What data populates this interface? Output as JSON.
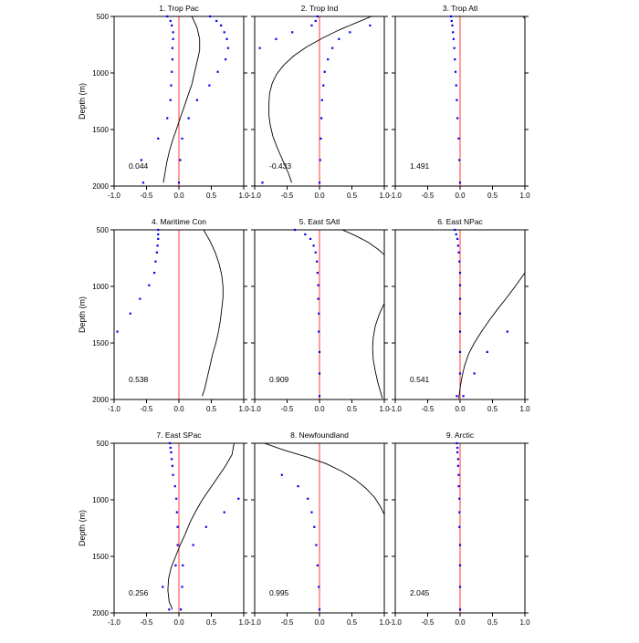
{
  "figure": {
    "colors": {
      "zero_line": "#ff3b3b",
      "points": "#0000ee",
      "curve": "#000000",
      "frame": "#000000"
    }
  },
  "chart_data": [
    {
      "type": "line",
      "title": "1. Trop Pac",
      "ylabel": "Depth (m)",
      "xlim": [
        -1,
        1
      ],
      "ylim": [
        2000,
        500
      ],
      "x_ticks": [
        "-1.0",
        "-0.5",
        "0.0",
        "0.5",
        "1.0"
      ],
      "y_ticks": [
        "500",
        "1000",
        "1500",
        "2000"
      ],
      "annotation": "0.044",
      "points_a": [
        [
          -0.18,
          500
        ],
        [
          -0.13,
          540
        ],
        [
          -0.11,
          580
        ],
        [
          -0.09,
          640
        ],
        [
          -0.09,
          700
        ],
        [
          -0.1,
          780
        ],
        [
          -0.1,
          880
        ],
        [
          -0.11,
          990
        ],
        [
          -0.12,
          1110
        ],
        [
          -0.13,
          1240
        ],
        [
          -0.18,
          1400
        ],
        [
          -0.32,
          1580
        ],
        [
          -0.58,
          1770
        ],
        [
          -0.55,
          1970
        ]
      ],
      "points_b": [
        [
          0.48,
          500
        ],
        [
          0.58,
          540
        ],
        [
          0.65,
          580
        ],
        [
          0.7,
          640
        ],
        [
          0.74,
          700
        ],
        [
          0.76,
          780
        ],
        [
          0.72,
          880
        ],
        [
          0.6,
          990
        ],
        [
          0.47,
          1110
        ],
        [
          0.28,
          1240
        ],
        [
          0.15,
          1400
        ],
        [
          0.05,
          1580
        ],
        [
          0.02,
          1770
        ],
        [
          0.0,
          1970
        ]
      ],
      "curve": [
        [
          0.2,
          500
        ],
        [
          0.28,
          600
        ],
        [
          0.32,
          700
        ],
        [
          0.32,
          800
        ],
        [
          0.28,
          900
        ],
        [
          0.24,
          1000
        ],
        [
          0.2,
          1100
        ],
        [
          0.14,
          1200
        ],
        [
          0.08,
          1300
        ],
        [
          0.02,
          1400
        ],
        [
          -0.04,
          1500
        ],
        [
          -0.1,
          1600
        ],
        [
          -0.15,
          1700
        ],
        [
          -0.19,
          1800
        ],
        [
          -0.22,
          1900
        ],
        [
          -0.24,
          1970
        ]
      ]
    },
    {
      "type": "line",
      "title": "2. Trop Ind",
      "xlim": [
        -1,
        1
      ],
      "ylim": [
        2000,
        500
      ],
      "x_ticks": [
        "-1.0",
        "-0.5",
        "0.0",
        "0.5",
        "1.0"
      ],
      "y_ticks": [
        "500",
        "1000",
        "1500",
        "2000"
      ],
      "annotation": "-0.433",
      "points_a": [
        [
          -0.03,
          500
        ],
        [
          -0.06,
          540
        ],
        [
          -0.12,
          580
        ],
        [
          -0.42,
          640
        ],
        [
          -0.67,
          700
        ],
        [
          -0.92,
          780
        ],
        [
          -0.88,
          1970
        ]
      ],
      "points_b": [
        [
          0.78,
          580
        ],
        [
          0.47,
          640
        ],
        [
          0.3,
          700
        ],
        [
          0.2,
          780
        ],
        [
          0.13,
          880
        ],
        [
          0.08,
          990
        ],
        [
          0.06,
          1110
        ],
        [
          0.04,
          1240
        ],
        [
          0.03,
          1400
        ],
        [
          0.02,
          1580
        ],
        [
          0.01,
          1770
        ],
        [
          0.0,
          1970
        ]
      ],
      "curve": [
        [
          0.8,
          500
        ],
        [
          0.55,
          560
        ],
        [
          0.3,
          620
        ],
        [
          0.05,
          690
        ],
        [
          -0.2,
          770
        ],
        [
          -0.4,
          850
        ],
        [
          -0.55,
          930
        ],
        [
          -0.66,
          1010
        ],
        [
          -0.73,
          1090
        ],
        [
          -0.77,
          1180
        ],
        [
          -0.78,
          1270
        ],
        [
          -0.78,
          1370
        ],
        [
          -0.76,
          1460
        ],
        [
          -0.72,
          1560
        ],
        [
          -0.66,
          1650
        ],
        [
          -0.6,
          1730
        ],
        [
          -0.53,
          1820
        ],
        [
          -0.47,
          1900
        ],
        [
          -0.43,
          1970
        ]
      ]
    },
    {
      "type": "line",
      "title": "3. Trop Atl",
      "xlim": [
        -1,
        1
      ],
      "ylim": [
        2000,
        500
      ],
      "x_ticks": [
        "-1.0",
        "-0.5",
        "0.0",
        "0.5",
        "1.0"
      ],
      "y_ticks": [
        "500",
        "1000",
        "1500",
        "2000"
      ],
      "annotation": "1.491",
      "points_a": [
        [
          -0.14,
          500
        ],
        [
          -0.13,
          540
        ],
        [
          -0.12,
          580
        ],
        [
          -0.11,
          640
        ],
        [
          -0.1,
          700
        ],
        [
          -0.09,
          780
        ],
        [
          -0.08,
          880
        ],
        [
          -0.07,
          990
        ],
        [
          -0.06,
          1110
        ],
        [
          -0.05,
          1240
        ],
        [
          -0.04,
          1400
        ],
        [
          -0.02,
          1580
        ],
        [
          -0.01,
          1770
        ],
        [
          0.0,
          1970
        ]
      ],
      "points_b": [],
      "curve": [
        [
          0.97,
          500
        ],
        [
          1.0,
          520
        ]
      ]
    },
    {
      "type": "line",
      "title": "4. Maritime Con",
      "ylabel": "Depth (m)",
      "xlim": [
        -1,
        1
      ],
      "ylim": [
        2000,
        500
      ],
      "x_ticks": [
        "-1.0",
        "-0.5",
        "0.0",
        "0.5",
        "1.0"
      ],
      "y_ticks": [
        "500",
        "1000",
        "1500",
        "2000"
      ],
      "annotation": "0.538",
      "points_a": [
        [
          -0.32,
          500
        ],
        [
          -0.32,
          540
        ],
        [
          -0.32,
          580
        ],
        [
          -0.33,
          640
        ],
        [
          -0.34,
          700
        ],
        [
          -0.36,
          780
        ],
        [
          -0.38,
          880
        ],
        [
          -0.46,
          990
        ],
        [
          -0.6,
          1110
        ],
        [
          -0.75,
          1240
        ],
        [
          -0.95,
          1400
        ]
      ],
      "points_b": [],
      "curve": [
        [
          0.38,
          500
        ],
        [
          0.48,
          600
        ],
        [
          0.56,
          700
        ],
        [
          0.62,
          800
        ],
        [
          0.66,
          900
        ],
        [
          0.68,
          1000
        ],
        [
          0.68,
          1100
        ],
        [
          0.66,
          1200
        ],
        [
          0.64,
          1300
        ],
        [
          0.61,
          1400
        ],
        [
          0.57,
          1500
        ],
        [
          0.52,
          1600
        ],
        [
          0.48,
          1700
        ],
        [
          0.44,
          1800
        ],
        [
          0.4,
          1900
        ],
        [
          0.36,
          1970
        ]
      ]
    },
    {
      "type": "line",
      "title": "5. East SAtl",
      "xlim": [
        -1,
        1
      ],
      "ylim": [
        2000,
        500
      ],
      "x_ticks": [
        "-1.0",
        "-0.5",
        "0.0",
        "0.5",
        "1.0"
      ],
      "y_ticks": [
        "500",
        "1000",
        "1500",
        "2000"
      ],
      "annotation": "0.909",
      "points_a": [
        [
          -0.38,
          500
        ],
        [
          -0.22,
          540
        ],
        [
          -0.14,
          580
        ],
        [
          -0.09,
          640
        ],
        [
          -0.06,
          700
        ],
        [
          -0.04,
          780
        ],
        [
          -0.03,
          880
        ],
        [
          -0.02,
          990
        ],
        [
          -0.02,
          1110
        ],
        [
          -0.01,
          1240
        ],
        [
          -0.01,
          1400
        ],
        [
          0.0,
          1580
        ],
        [
          0.0,
          1770
        ],
        [
          0.0,
          1970
        ]
      ],
      "points_b": [],
      "curve_segments": [
        [
          [
            0.35,
            500
          ],
          [
            0.55,
            550
          ],
          [
            0.75,
            610
          ],
          [
            0.9,
            670
          ],
          [
            1.0,
            720
          ]
        ],
        [
          [
            1.0,
            1150
          ],
          [
            0.92,
            1250
          ],
          [
            0.86,
            1350
          ],
          [
            0.83,
            1450
          ],
          [
            0.82,
            1550
          ],
          [
            0.83,
            1650
          ],
          [
            0.86,
            1750
          ],
          [
            0.9,
            1850
          ],
          [
            0.95,
            1950
          ],
          [
            0.97,
            1990
          ]
        ]
      ]
    },
    {
      "type": "line",
      "title": "6. East NPac",
      "xlim": [
        -1,
        1
      ],
      "ylim": [
        2000,
        500
      ],
      "x_ticks": [
        "-1.0",
        "-0.5",
        "0.0",
        "0.5",
        "1.0"
      ],
      "y_ticks": [
        "500",
        "1000",
        "1500",
        "2000"
      ],
      "annotation": "0.541",
      "points_a": [
        [
          -0.08,
          500
        ],
        [
          -0.06,
          540
        ],
        [
          -0.04,
          580
        ],
        [
          -0.03,
          640
        ],
        [
          -0.02,
          700
        ],
        [
          -0.01,
          780
        ],
        [
          0.0,
          880
        ],
        [
          0.0,
          990
        ],
        [
          0.0,
          1110
        ],
        [
          0.0,
          1240
        ],
        [
          0.0,
          1400
        ],
        [
          0.0,
          1580
        ],
        [
          0.0,
          1770
        ],
        [
          0.05,
          1970
        ],
        [
          -0.05,
          1970
        ]
      ],
      "points_b": [
        [
          0.73,
          1400
        ],
        [
          0.42,
          1580
        ],
        [
          0.22,
          1770
        ]
      ],
      "curve": [
        [
          1.0,
          880
        ],
        [
          0.85,
          1000
        ],
        [
          0.72,
          1100
        ],
        [
          0.58,
          1200
        ],
        [
          0.45,
          1300
        ],
        [
          0.33,
          1400
        ],
        [
          0.22,
          1500
        ],
        [
          0.13,
          1600
        ],
        [
          0.07,
          1700
        ],
        [
          0.03,
          1800
        ],
        [
          0.0,
          1900
        ],
        [
          -0.02,
          1990
        ]
      ]
    },
    {
      "type": "line",
      "title": "7. East SPac",
      "ylabel": "Depth (m)",
      "xlim": [
        -1,
        1
      ],
      "ylim": [
        2000,
        500
      ],
      "x_ticks": [
        "-1.0",
        "-0.5",
        "0.0",
        "0.5",
        "1.0"
      ],
      "y_ticks": [
        "500",
        "1000",
        "1500",
        "2000"
      ],
      "annotation": "0.256",
      "points_a": [
        [
          -0.14,
          500
        ],
        [
          -0.13,
          540
        ],
        [
          -0.12,
          580
        ],
        [
          -0.11,
          640
        ],
        [
          -0.1,
          700
        ],
        [
          -0.09,
          780
        ],
        [
          -0.06,
          880
        ],
        [
          -0.04,
          990
        ],
        [
          -0.03,
          1110
        ],
        [
          -0.02,
          1240
        ],
        [
          -0.02,
          1400
        ],
        [
          -0.05,
          1580
        ],
        [
          -0.25,
          1770
        ],
        [
          -0.15,
          1970
        ]
      ],
      "points_b": [
        [
          0.92,
          990
        ],
        [
          0.7,
          1110
        ],
        [
          0.42,
          1240
        ],
        [
          0.22,
          1400
        ],
        [
          0.06,
          1580
        ],
        [
          0.05,
          1770
        ],
        [
          0.03,
          1970
        ]
      ],
      "curve": [
        [
          0.85,
          500
        ],
        [
          0.82,
          600
        ],
        [
          0.72,
          700
        ],
        [
          0.6,
          800
        ],
        [
          0.48,
          900
        ],
        [
          0.36,
          1000
        ],
        [
          0.26,
          1100
        ],
        [
          0.17,
          1200
        ],
        [
          0.1,
          1300
        ],
        [
          0.02,
          1400
        ],
        [
          -0.05,
          1500
        ],
        [
          -0.12,
          1600
        ],
        [
          -0.16,
          1700
        ],
        [
          -0.17,
          1800
        ],
        [
          -0.15,
          1900
        ],
        [
          -0.1,
          1970
        ]
      ]
    },
    {
      "type": "line",
      "title": "8. Newfoundland",
      "xlim": [
        -1,
        1
      ],
      "ylim": [
        2000,
        500
      ],
      "x_ticks": [
        "-1.0",
        "-0.5",
        "0.0",
        "0.5",
        "1.0"
      ],
      "y_ticks": [
        "500",
        "1000",
        "1500",
        "2000"
      ],
      "annotation": "0.995",
      "points_a": [
        [
          -0.58,
          780
        ],
        [
          -0.33,
          880
        ],
        [
          -0.18,
          990
        ],
        [
          -0.12,
          1110
        ],
        [
          -0.08,
          1240
        ],
        [
          -0.05,
          1400
        ],
        [
          -0.03,
          1580
        ],
        [
          -0.01,
          1770
        ],
        [
          0.0,
          1970
        ]
      ],
      "points_b": [],
      "curve": [
        [
          -0.85,
          500
        ],
        [
          -0.55,
          560
        ],
        [
          -0.2,
          620
        ],
        [
          0.1,
          680
        ],
        [
          0.35,
          750
        ],
        [
          0.55,
          820
        ],
        [
          0.72,
          900
        ],
        [
          0.85,
          980
        ],
        [
          0.94,
          1060
        ],
        [
          1.0,
          1130
        ]
      ]
    },
    {
      "type": "line",
      "title": "9. Arctic",
      "xlim": [
        -1,
        1
      ],
      "ylim": [
        2000,
        500
      ],
      "x_ticks": [
        "-1.0",
        "-0.5",
        "0.0",
        "0.5",
        "1.0"
      ],
      "y_ticks": [
        "500",
        "1000",
        "1500",
        "2000"
      ],
      "annotation": "2.045",
      "points_a": [
        [
          -0.05,
          500
        ],
        [
          -0.04,
          540
        ],
        [
          -0.04,
          580
        ],
        [
          -0.03,
          640
        ],
        [
          -0.03,
          700
        ],
        [
          -0.02,
          780
        ],
        [
          -0.02,
          880
        ],
        [
          -0.01,
          990
        ],
        [
          -0.01,
          1110
        ],
        [
          -0.01,
          1240
        ],
        [
          0.0,
          1400
        ],
        [
          0.0,
          1580
        ],
        [
          0.0,
          1770
        ],
        [
          0.0,
          1970
        ]
      ],
      "points_b": [],
      "curve": []
    }
  ]
}
